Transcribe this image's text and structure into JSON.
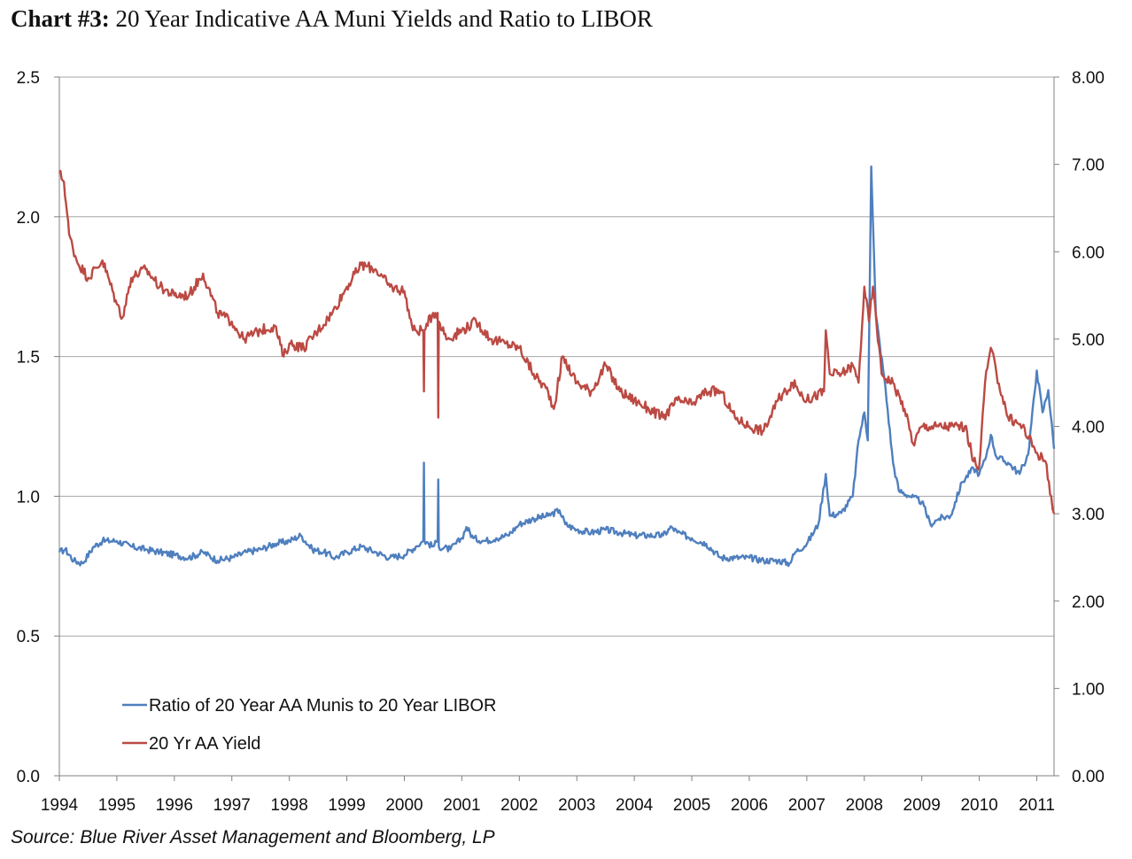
{
  "title_bold": "Chart #3:",
  "title_rest": " 20 Year Indicative AA Muni Yields and Ratio to LIBOR",
  "source": "Source: Blue River Asset Management and Bloomberg, LP",
  "chart_data": {
    "type": "line",
    "x_range": [
      1994.0,
      2011.3
    ],
    "x_ticks": [
      "1994",
      "1995",
      "1996",
      "1997",
      "1998",
      "1999",
      "2000",
      "2001",
      "2002",
      "2003",
      "2004",
      "2005",
      "2006",
      "2007",
      "2008",
      "2009",
      "2010",
      "2011"
    ],
    "y_left": {
      "range": [
        0,
        2.5
      ],
      "ticks": [
        "0.0",
        "0.5",
        "1.0",
        "1.5",
        "2.0",
        "2.5"
      ]
    },
    "y_right": {
      "range": [
        0,
        8
      ],
      "ticks": [
        "0.00",
        "1.00",
        "2.00",
        "3.00",
        "4.00",
        "5.00",
        "6.00",
        "7.00",
        "8.00"
      ]
    },
    "grid": true,
    "legend_position": "bottom-left",
    "colors": {
      "ratio": "#4f7fbe",
      "yield": "#bb4a43",
      "grid": "#a6a6a6",
      "axis": "#808080"
    },
    "series": [
      {
        "name": "Ratio of 20 Year AA Munis to 20 Year LIBOR",
        "axis": "left",
        "points": [
          [
            1994.0,
            0.8
          ],
          [
            1994.1,
            0.81
          ],
          [
            1994.25,
            0.77
          ],
          [
            1994.4,
            0.76
          ],
          [
            1994.6,
            0.82
          ],
          [
            1994.75,
            0.84
          ],
          [
            1995.0,
            0.84
          ],
          [
            1995.25,
            0.82
          ],
          [
            1995.5,
            0.81
          ],
          [
            1995.75,
            0.8
          ],
          [
            1996.0,
            0.79
          ],
          [
            1996.25,
            0.78
          ],
          [
            1996.5,
            0.8
          ],
          [
            1996.75,
            0.77
          ],
          [
            1997.0,
            0.78
          ],
          [
            1997.25,
            0.8
          ],
          [
            1997.5,
            0.81
          ],
          [
            1997.75,
            0.83
          ],
          [
            1998.0,
            0.84
          ],
          [
            1998.2,
            0.86
          ],
          [
            1998.4,
            0.81
          ],
          [
            1998.6,
            0.8
          ],
          [
            1998.8,
            0.78
          ],
          [
            1999.0,
            0.8
          ],
          [
            1999.25,
            0.82
          ],
          [
            1999.5,
            0.8
          ],
          [
            1999.75,
            0.78
          ],
          [
            2000.0,
            0.79
          ],
          [
            2000.2,
            0.82
          ],
          [
            2000.33,
            0.84
          ],
          [
            2000.34,
            1.12
          ],
          [
            2000.35,
            0.84
          ],
          [
            2000.5,
            0.82
          ],
          [
            2000.58,
            0.84
          ],
          [
            2000.59,
            1.06
          ],
          [
            2000.6,
            0.82
          ],
          [
            2000.8,
            0.81
          ],
          [
            2001.0,
            0.85
          ],
          [
            2001.08,
            0.89
          ],
          [
            2001.2,
            0.85
          ],
          [
            2001.4,
            0.84
          ],
          [
            2001.6,
            0.85
          ],
          [
            2001.8,
            0.86
          ],
          [
            2002.0,
            0.9
          ],
          [
            2002.25,
            0.92
          ],
          [
            2002.5,
            0.93
          ],
          [
            2002.7,
            0.95
          ],
          [
            2002.8,
            0.9
          ],
          [
            2003.0,
            0.88
          ],
          [
            2003.25,
            0.87
          ],
          [
            2003.5,
            0.88
          ],
          [
            2003.75,
            0.87
          ],
          [
            2004.0,
            0.86
          ],
          [
            2004.25,
            0.86
          ],
          [
            2004.5,
            0.86
          ],
          [
            2004.65,
            0.89
          ],
          [
            2004.75,
            0.87
          ],
          [
            2005.0,
            0.85
          ],
          [
            2005.25,
            0.83
          ],
          [
            2005.5,
            0.78
          ],
          [
            2005.75,
            0.78
          ],
          [
            2006.0,
            0.78
          ],
          [
            2006.25,
            0.77
          ],
          [
            2006.5,
            0.77
          ],
          [
            2006.7,
            0.76
          ],
          [
            2006.8,
            0.8
          ],
          [
            2007.0,
            0.83
          ],
          [
            2007.2,
            0.9
          ],
          [
            2007.33,
            1.08
          ],
          [
            2007.4,
            0.93
          ],
          [
            2007.6,
            0.94
          ],
          [
            2007.8,
            1.0
          ],
          [
            2007.9,
            1.2
          ],
          [
            2008.0,
            1.3
          ],
          [
            2008.06,
            1.2
          ],
          [
            2008.12,
            2.18
          ],
          [
            2008.2,
            1.65
          ],
          [
            2008.35,
            1.42
          ],
          [
            2008.5,
            1.12
          ],
          [
            2008.6,
            1.02
          ],
          [
            2008.8,
            1.0
          ],
          [
            2009.0,
            0.98
          ],
          [
            2009.15,
            0.9
          ],
          [
            2009.3,
            0.92
          ],
          [
            2009.5,
            0.93
          ],
          [
            2009.7,
            1.05
          ],
          [
            2009.9,
            1.1
          ],
          [
            2010.0,
            1.08
          ],
          [
            2010.1,
            1.13
          ],
          [
            2010.2,
            1.22
          ],
          [
            2010.3,
            1.14
          ],
          [
            2010.5,
            1.12
          ],
          [
            2010.7,
            1.08
          ],
          [
            2010.85,
            1.15
          ],
          [
            2011.0,
            1.45
          ],
          [
            2011.1,
            1.3
          ],
          [
            2011.2,
            1.38
          ],
          [
            2011.3,
            1.17
          ]
        ]
      },
      {
        "name": "20 Yr AA Yield",
        "axis": "right",
        "points": [
          [
            1994.0,
            6.9
          ],
          [
            1994.08,
            6.8
          ],
          [
            1994.17,
            6.2
          ],
          [
            1994.3,
            5.9
          ],
          [
            1994.5,
            5.7
          ],
          [
            1994.75,
            5.9
          ],
          [
            1995.0,
            5.4
          ],
          [
            1995.1,
            5.25
          ],
          [
            1995.25,
            5.7
          ],
          [
            1995.5,
            5.8
          ],
          [
            1995.75,
            5.6
          ],
          [
            1996.0,
            5.5
          ],
          [
            1996.25,
            5.5
          ],
          [
            1996.5,
            5.75
          ],
          [
            1996.75,
            5.3
          ],
          [
            1997.0,
            5.2
          ],
          [
            1997.2,
            5.0
          ],
          [
            1997.5,
            5.1
          ],
          [
            1997.75,
            5.15
          ],
          [
            1997.9,
            4.8
          ],
          [
            1998.0,
            4.95
          ],
          [
            1998.25,
            4.9
          ],
          [
            1998.5,
            5.1
          ],
          [
            1998.75,
            5.3
          ],
          [
            1999.0,
            5.6
          ],
          [
            1999.25,
            5.85
          ],
          [
            1999.5,
            5.8
          ],
          [
            1999.75,
            5.6
          ],
          [
            2000.0,
            5.55
          ],
          [
            2000.15,
            5.1
          ],
          [
            2000.3,
            5.1
          ],
          [
            2000.33,
            5.1
          ],
          [
            2000.34,
            4.4
          ],
          [
            2000.35,
            5.1
          ],
          [
            2000.5,
            5.3
          ],
          [
            2000.58,
            5.3
          ],
          [
            2000.59,
            4.1
          ],
          [
            2000.6,
            5.2
          ],
          [
            2000.75,
            5.0
          ],
          [
            2001.0,
            5.1
          ],
          [
            2001.25,
            5.2
          ],
          [
            2001.5,
            5.0
          ],
          [
            2001.75,
            4.95
          ],
          [
            2002.0,
            4.9
          ],
          [
            2002.25,
            4.6
          ],
          [
            2002.5,
            4.4
          ],
          [
            2002.6,
            4.2
          ],
          [
            2002.75,
            4.8
          ],
          [
            2003.0,
            4.5
          ],
          [
            2003.25,
            4.4
          ],
          [
            2003.5,
            4.7
          ],
          [
            2003.75,
            4.4
          ],
          [
            2004.0,
            4.3
          ],
          [
            2004.25,
            4.2
          ],
          [
            2004.5,
            4.1
          ],
          [
            2004.75,
            4.3
          ],
          [
            2005.0,
            4.25
          ],
          [
            2005.25,
            4.4
          ],
          [
            2005.5,
            4.4
          ],
          [
            2005.75,
            4.1
          ],
          [
            2006.0,
            4.0
          ],
          [
            2006.25,
            3.95
          ],
          [
            2006.5,
            4.3
          ],
          [
            2006.75,
            4.5
          ],
          [
            2007.0,
            4.3
          ],
          [
            2007.3,
            4.4
          ],
          [
            2007.33,
            5.1
          ],
          [
            2007.4,
            4.6
          ],
          [
            2007.6,
            4.6
          ],
          [
            2007.8,
            4.7
          ],
          [
            2007.9,
            4.5
          ],
          [
            2008.0,
            5.6
          ],
          [
            2008.08,
            5.2
          ],
          [
            2008.15,
            5.6
          ],
          [
            2008.3,
            4.6
          ],
          [
            2008.5,
            4.5
          ],
          [
            2008.7,
            4.2
          ],
          [
            2008.85,
            3.8
          ],
          [
            2009.0,
            4.0
          ],
          [
            2009.25,
            4.0
          ],
          [
            2009.5,
            4.0
          ],
          [
            2009.75,
            4.0
          ],
          [
            2009.9,
            3.6
          ],
          [
            2010.0,
            3.55
          ],
          [
            2010.1,
            4.5
          ],
          [
            2010.2,
            4.9
          ],
          [
            2010.3,
            4.6
          ],
          [
            2010.5,
            4.1
          ],
          [
            2010.75,
            4.0
          ],
          [
            2011.0,
            3.7
          ],
          [
            2011.15,
            3.6
          ],
          [
            2011.25,
            3.2
          ],
          [
            2011.3,
            3.0
          ]
        ]
      }
    ]
  }
}
